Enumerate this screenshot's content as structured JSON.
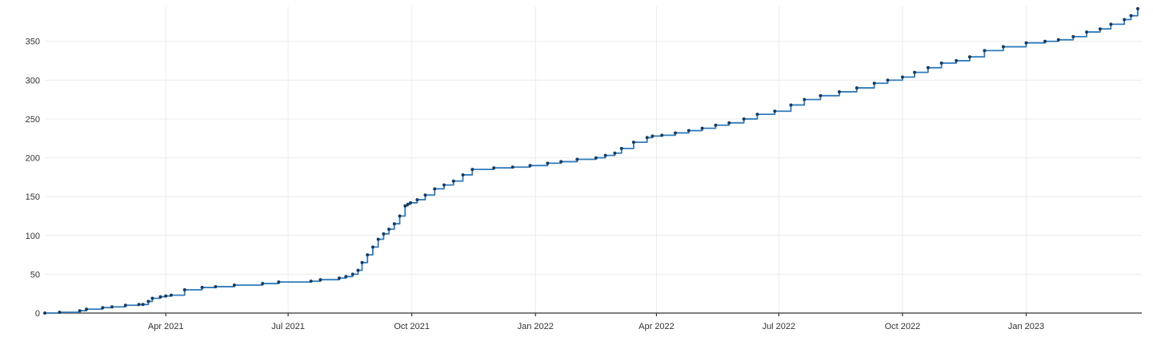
{
  "chart_data": {
    "type": "line",
    "title": "",
    "xlabel": "",
    "ylabel": "",
    "grid": true,
    "legend": "none",
    "x_range": [
      "2021-01-01",
      "2023-03-28"
    ],
    "ylim": [
      0,
      395
    ],
    "y_ticks": [
      0,
      50,
      100,
      150,
      200,
      250,
      300,
      350
    ],
    "x_ticks": [
      {
        "date": "2021-04-01",
        "label": "Apr 2021"
      },
      {
        "date": "2021-07-01",
        "label": "Jul 2021"
      },
      {
        "date": "2021-10-01",
        "label": "Oct 2021"
      },
      {
        "date": "2022-01-01",
        "label": "Jan 2022"
      },
      {
        "date": "2022-04-01",
        "label": "Apr 2022"
      },
      {
        "date": "2022-07-01",
        "label": "Jul 2022"
      },
      {
        "date": "2022-10-01",
        "label": "Oct 2022"
      },
      {
        "date": "2023-01-01",
        "label": "Jan 2023"
      }
    ],
    "colors": {
      "line": "#2f7bbd",
      "markers": "#1a3a5c",
      "grid": "#ececec",
      "axis": "#333333"
    },
    "series": [
      {
        "x": [
          "2021-01-01",
          "2021-01-12",
          "2021-01-27",
          "2021-02-01",
          "2021-02-13",
          "2021-02-20",
          "2021-03-02",
          "2021-03-12",
          "2021-03-15",
          "2021-03-19",
          "2021-03-22",
          "2021-03-28",
          "2021-04-01",
          "2021-04-05",
          "2021-04-15",
          "2021-04-28",
          "2021-05-08",
          "2021-05-22",
          "2021-06-12",
          "2021-06-24",
          "2021-07-18",
          "2021-07-25",
          "2021-08-08",
          "2021-08-13",
          "2021-08-18",
          "2021-08-22",
          "2021-08-25",
          "2021-08-29",
          "2021-09-02",
          "2021-09-06",
          "2021-09-10",
          "2021-09-14",
          "2021-09-18",
          "2021-09-22",
          "2021-09-26",
          "2021-09-28",
          "2021-09-30",
          "2021-10-05",
          "2021-10-11",
          "2021-10-18",
          "2021-10-25",
          "2021-11-01",
          "2021-11-08",
          "2021-11-15",
          "2021-12-01",
          "2021-12-15",
          "2021-12-28",
          "2022-01-10",
          "2022-01-20",
          "2022-02-01",
          "2022-02-15",
          "2022-02-22",
          "2022-03-01",
          "2022-03-06",
          "2022-03-15",
          "2022-03-25",
          "2022-03-29",
          "2022-04-05",
          "2022-04-15",
          "2022-04-25",
          "2022-05-05",
          "2022-05-15",
          "2022-05-25",
          "2022-06-05",
          "2022-06-15",
          "2022-06-28",
          "2022-07-10",
          "2022-07-20",
          "2022-08-01",
          "2022-08-15",
          "2022-08-28",
          "2022-09-10",
          "2022-09-20",
          "2022-10-01",
          "2022-10-10",
          "2022-10-20",
          "2022-10-30",
          "2022-11-10",
          "2022-11-20",
          "2022-12-01",
          "2022-12-15",
          "2023-01-01",
          "2023-01-15",
          "2023-01-25",
          "2023-02-05",
          "2023-02-15",
          "2023-02-25",
          "2023-03-05",
          "2023-03-15",
          "2023-03-20",
          "2023-03-25"
        ],
        "y": [
          0,
          1,
          3,
          5,
          7,
          8,
          10,
          11,
          11,
          15,
          19,
          21,
          22,
          23,
          30,
          33,
          34,
          36,
          38,
          40,
          41,
          43,
          45,
          47,
          50,
          55,
          65,
          75,
          85,
          95,
          102,
          108,
          115,
          125,
          138,
          140,
          142,
          146,
          152,
          160,
          165,
          170,
          178,
          185,
          187,
          188,
          190,
          193,
          195,
          198,
          200,
          203,
          206,
          212,
          220,
          226,
          228,
          229,
          232,
          235,
          238,
          242,
          245,
          250,
          256,
          260,
          268,
          275,
          280,
          285,
          290,
          296,
          300,
          304,
          310,
          316,
          322,
          325,
          330,
          338,
          343,
          348,
          350,
          352,
          356,
          362,
          366,
          372,
          378,
          383,
          392
        ]
      }
    ]
  }
}
